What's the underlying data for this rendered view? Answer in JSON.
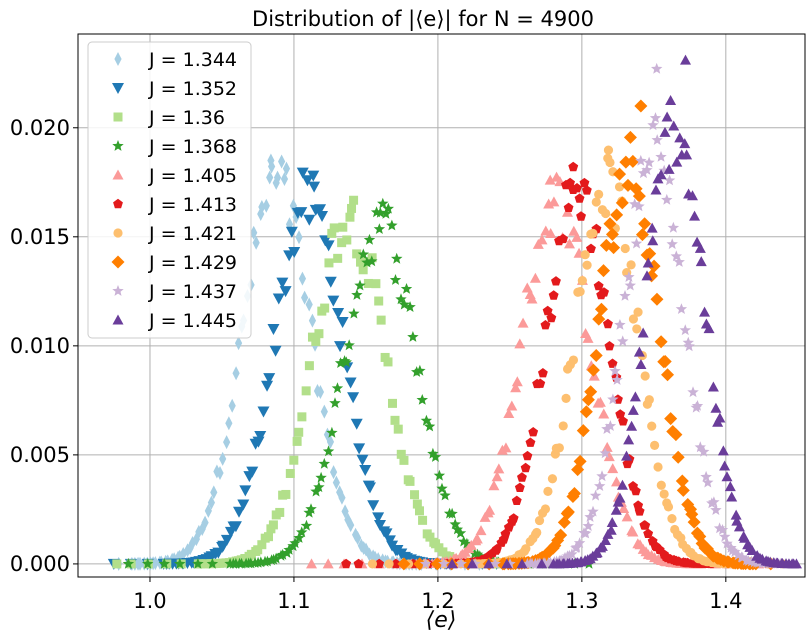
{
  "chart_data": {
    "type": "scatter",
    "title": "Distribution of  |⟨e⟩| for N =  4900",
    "xlabel": "⟨e⟩",
    "ylabel": "",
    "xlim": [
      0.95,
      1.455
    ],
    "ylim": [
      -0.0006,
      0.0243
    ],
    "x_ticks": [
      1.0,
      1.1,
      1.2,
      1.3,
      1.4
    ],
    "x_tick_labels": [
      "1.0",
      "1.1",
      "1.2",
      "1.3",
      "1.4"
    ],
    "y_ticks": [
      0.0,
      0.005,
      0.01,
      0.015,
      0.02
    ],
    "y_tick_labels": [
      "0.000",
      "0.005",
      "0.010",
      "0.015",
      "0.020"
    ],
    "grid": true,
    "legend_position": "upper-left",
    "series": [
      {
        "name": "J = 1.344",
        "marker": "thin-diamond",
        "color": "#a6cee3",
        "mean": 1.088,
        "sd": 0.024,
        "peak": 0.0175,
        "max_point": [
          1.084,
          0.0185
        ]
      },
      {
        "name": "J = 1.352",
        "marker": "triangle-down",
        "color": "#1f78b4",
        "mean": 1.11,
        "sd": 0.024,
        "peak": 0.0167,
        "max_point": [
          1.114,
          0.0173
        ]
      },
      {
        "name": "J = 1.36",
        "marker": "square",
        "color": "#b2df8a",
        "mean": 1.138,
        "sd": 0.025,
        "peak": 0.016,
        "max_point": [
          1.14,
          0.0163
        ]
      },
      {
        "name": "J = 1.368",
        "marker": "star",
        "color": "#33a02c",
        "mean": 1.16,
        "sd": 0.025,
        "peak": 0.0156,
        "max_point": [
          1.16,
          0.0161
        ]
      },
      {
        "name": "J = 1.405",
        "marker": "triangle-up",
        "color": "#fb9a99",
        "mean": 1.282,
        "sd": 0.024,
        "peak": 0.0166,
        "max_point": [
          1.278,
          0.0176
        ]
      },
      {
        "name": "J = 1.413",
        "marker": "pentagon",
        "color": "#e31a1c",
        "mean": 1.297,
        "sd": 0.022,
        "peak": 0.0172,
        "max_point": [
          1.294,
          0.0182
        ]
      },
      {
        "name": "J = 1.421",
        "marker": "circle",
        "color": "#fdbf6f",
        "mean": 1.317,
        "sd": 0.022,
        "peak": 0.0175,
        "max_point": [
          1.318,
          0.0186
        ]
      },
      {
        "name": "J = 1.429",
        "marker": "diamond",
        "color": "#ff7f00",
        "mean": 1.333,
        "sd": 0.021,
        "peak": 0.0182,
        "max_point": [
          1.341,
          0.021
        ]
      },
      {
        "name": "J = 1.437",
        "marker": "star",
        "color": "#cab2d6",
        "mean": 1.35,
        "sd": 0.021,
        "peak": 0.019,
        "max_point": [
          1.352,
          0.0227
        ]
      },
      {
        "name": "J = 1.445",
        "marker": "triangle-up",
        "color": "#6a3d9a",
        "mean": 1.365,
        "sd": 0.02,
        "peak": 0.0202,
        "max_point": [
          1.372,
          0.0231
        ]
      }
    ]
  }
}
